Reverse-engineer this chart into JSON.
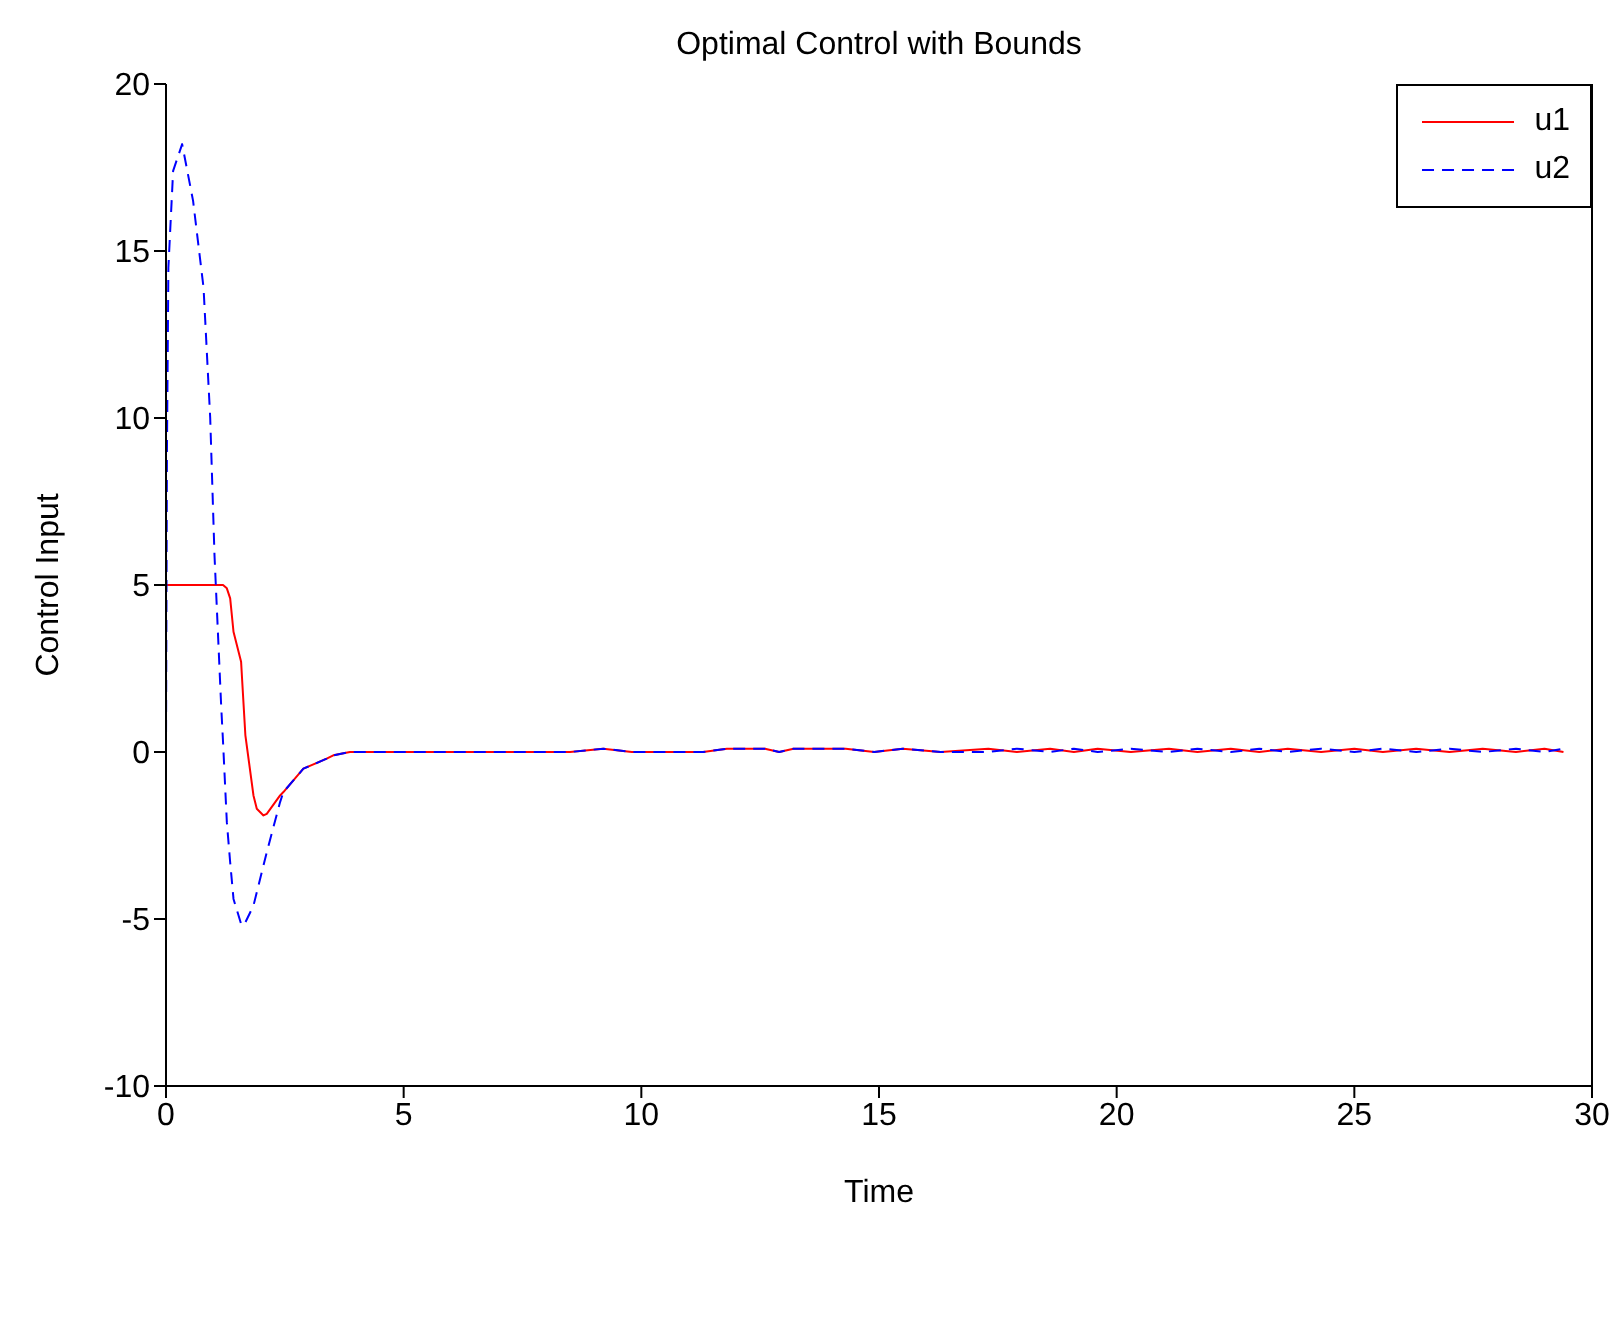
{
  "chart_data": {
    "type": "line",
    "title": "Optimal Control with Bounds",
    "xlabel": "Time",
    "ylabel": "Control Input",
    "x": [
      0,
      0.02,
      0.05,
      0.15,
      0.34,
      0.57,
      0.79,
      0.93,
      1.02,
      1.16,
      1.2,
      1.28,
      1.35,
      1.42,
      1.58,
      1.6,
      1.67,
      1.84,
      1.91,
      2.05,
      2.12,
      2.4,
      2.47,
      2.89,
      3.38,
      3.52,
      3.87,
      4.5,
      8.5,
      9.2,
      9.8,
      11.3,
      11.8,
      12.6,
      12.9,
      13.2,
      14.3,
      14.9,
      15.5,
      16.3,
      17.3,
      17.9,
      18.6,
      19.1,
      19.6,
      20.3,
      21.1,
      21.7,
      22.4,
      23.0,
      23.6,
      24.3,
      25.0,
      25.6,
      26.3,
      27.0,
      27.7,
      28.4,
      29.0,
      29.4
    ],
    "series": [
      {
        "name": "u1",
        "color": "#ff0000",
        "line_style": "solid",
        "values": [
          5,
          5,
          5,
          5,
          5,
          5,
          5,
          5,
          5,
          5,
          5,
          4.9,
          4.6,
          3.6,
          2.7,
          2.2,
          0.5,
          -1.3,
          -1.7,
          -1.9,
          -1.85,
          -1.3,
          -1.2,
          -0.5,
          -0.2,
          -0.1,
          0,
          0,
          0,
          0.1,
          0,
          0,
          0.1,
          0.1,
          0,
          0.1,
          0.1,
          0,
          0.1,
          0,
          0.1,
          0,
          0.1,
          0,
          0.1,
          0,
          0.1,
          0,
          0.1,
          0,
          0.1,
          0,
          0.1,
          0,
          0.1,
          0,
          0.1,
          0,
          0.1,
          0
        ]
      },
      {
        "name": "u2",
        "color": "#0000ff",
        "line_style": "dashed",
        "values": [
          0,
          9,
          14.5,
          17.4,
          18.2,
          16.5,
          13.9,
          10,
          5.9,
          1.4,
          0.3,
          -2.1,
          -3.3,
          -4.4,
          -5.15,
          -5.2,
          -5.1,
          -4.6,
          -4.2,
          -3.4,
          -3.0,
          -1.5,
          -1.2,
          -0.5,
          -0.2,
          -0.1,
          0,
          0,
          0,
          0.1,
          0,
          0,
          0.1,
          0.1,
          0,
          0.1,
          0.1,
          0,
          0.1,
          0,
          0,
          0.1,
          0,
          0.1,
          0,
          0.1,
          0,
          0.1,
          0,
          0.1,
          0,
          0.1,
          0,
          0.1,
          0,
          0.1,
          0,
          0.1,
          0,
          0.1
        ]
      }
    ],
    "xlim": [
      0,
      30
    ],
    "xticks": [
      0,
      5,
      10,
      15,
      20,
      25,
      30
    ],
    "ylim": [
      -10,
      20
    ],
    "yticks": [
      -10,
      -5,
      0,
      5,
      10,
      15,
      20
    ],
    "grid": false,
    "legend": "top right",
    "marker": "none"
  }
}
